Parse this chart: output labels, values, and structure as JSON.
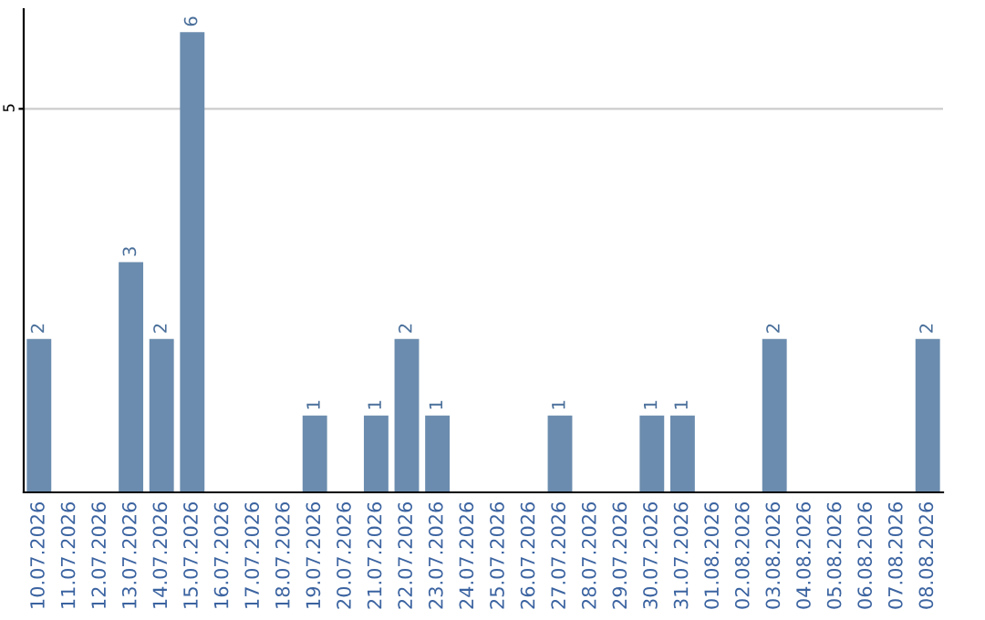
{
  "chart_data": {
    "type": "bar",
    "categories": [
      "10.07.2026",
      "11.07.2026",
      "12.07.2026",
      "13.07.2026",
      "14.07.2026",
      "15.07.2026",
      "16.07.2026",
      "17.07.2026",
      "18.07.2026",
      "19.07.2026",
      "20.07.2026",
      "21.07.2026",
      "22.07.2026",
      "23.07.2026",
      "24.07.2026",
      "25.07.2026",
      "26.07.2026",
      "27.07.2026",
      "28.07.2026",
      "29.07.2026",
      "30.07.2026",
      "31.07.2026",
      "01.08.2026",
      "02.08.2026",
      "03.08.2026",
      "04.08.2026",
      "05.08.2026",
      "06.08.2026",
      "07.08.2026",
      "08.08.2026"
    ],
    "values": [
      2,
      0,
      0,
      3,
      2,
      6,
      0,
      0,
      0,
      1,
      0,
      1,
      2,
      1,
      0,
      0,
      0,
      1,
      0,
      0,
      1,
      1,
      0,
      0,
      2,
      0,
      0,
      0,
      0,
      2
    ],
    "value_labels": [
      "2",
      null,
      null,
      "3",
      "2",
      "6",
      null,
      null,
      null,
      "1",
      null,
      "1",
      "2",
      "1",
      null,
      null,
      null,
      "1",
      null,
      null,
      "1",
      "1",
      null,
      null,
      "2",
      null,
      null,
      null,
      null,
      "2"
    ],
    "color": "#6b8cae",
    "ylim": [
      0,
      6.3
    ],
    "yticks": [
      5
    ],
    "grid": "y",
    "legend": false
  }
}
